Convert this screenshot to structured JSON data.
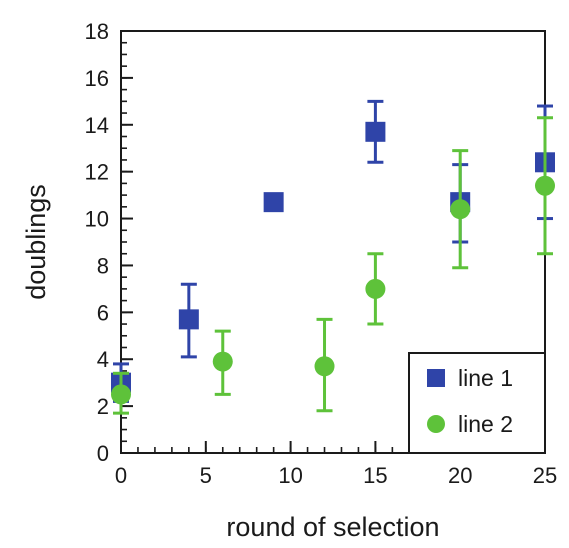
{
  "chart_data": {
    "type": "scatter",
    "xlabel": "round of selection",
    "ylabel": "doublings",
    "xlim": [
      0,
      25
    ],
    "ylim": [
      0,
      18
    ],
    "x_ticks": [
      0,
      5,
      10,
      15,
      20,
      25
    ],
    "y_ticks": [
      0,
      2,
      4,
      6,
      8,
      10,
      12,
      14,
      16,
      18
    ],
    "x_minor_step": 1,
    "y_minor_step": 0.5,
    "grid": false,
    "error_bars": true,
    "legend_position": "bottom-right",
    "series": [
      {
        "name": "line 1",
        "marker": "square",
        "color": "#2f44a8",
        "points": [
          {
            "x": 0,
            "y": 3.0,
            "lo": 2.2,
            "hi": 3.8
          },
          {
            "x": 4,
            "y": 5.7,
            "lo": 4.1,
            "hi": 7.2
          },
          {
            "x": 9,
            "y": 10.7,
            "lo": 10.5,
            "hi": 10.9
          },
          {
            "x": 15,
            "y": 13.7,
            "lo": 12.4,
            "hi": 15.0
          },
          {
            "x": 20,
            "y": 10.7,
            "lo": 9.0,
            "hi": 12.3
          },
          {
            "x": 25,
            "y": 12.4,
            "lo": 10.0,
            "hi": 14.8
          }
        ]
      },
      {
        "name": "line 2",
        "marker": "circle",
        "color": "#5ec23a",
        "points": [
          {
            "x": 0,
            "y": 2.5,
            "lo": 1.7,
            "hi": 3.4
          },
          {
            "x": 6,
            "y": 3.9,
            "lo": 2.5,
            "hi": 5.2
          },
          {
            "x": 12,
            "y": 3.7,
            "lo": 1.8,
            "hi": 5.7
          },
          {
            "x": 15,
            "y": 7.0,
            "lo": 5.5,
            "hi": 8.5
          },
          {
            "x": 20,
            "y": 10.4,
            "lo": 7.9,
            "hi": 12.9
          },
          {
            "x": 25,
            "y": 11.4,
            "lo": 8.5,
            "hi": 14.3
          }
        ]
      }
    ]
  }
}
